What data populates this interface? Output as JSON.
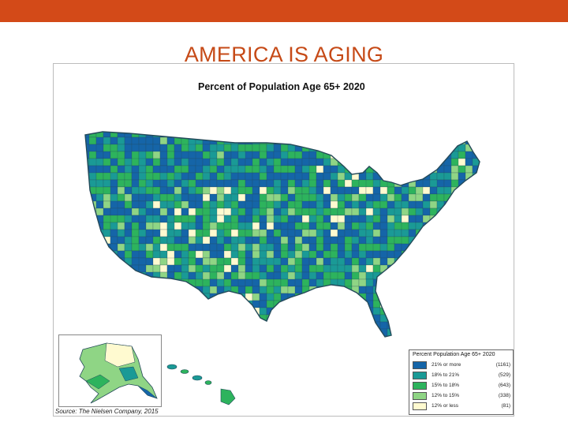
{
  "slide": {
    "title": "AMERICA IS AGING"
  },
  "map": {
    "title": "Percent of Population Age 65+ 2020",
    "source": "Source: The Nielsen Company, 2015",
    "colors": {
      "c1": "#1565a8",
      "c2": "#1a9a96",
      "c3": "#2db35d",
      "c4": "#8fd585",
      "c5": "#fffad0",
      "border": "#244a5a"
    }
  },
  "legend": {
    "title": "Percent Population Age 65+ 2020",
    "items": [
      {
        "label": "21% or more",
        "count": "(1161)",
        "color": "#1565a8"
      },
      {
        "label": "18% to 21%",
        "count": "(529)",
        "color": "#1a9a96"
      },
      {
        "label": "15% to 18%",
        "count": "(643)",
        "color": "#2db35d"
      },
      {
        "label": "12% to 15%",
        "count": "(338)",
        "color": "#8fd585"
      },
      {
        "label": "12% or less",
        "count": "(81)",
        "color": "#fffad0"
      }
    ]
  }
}
